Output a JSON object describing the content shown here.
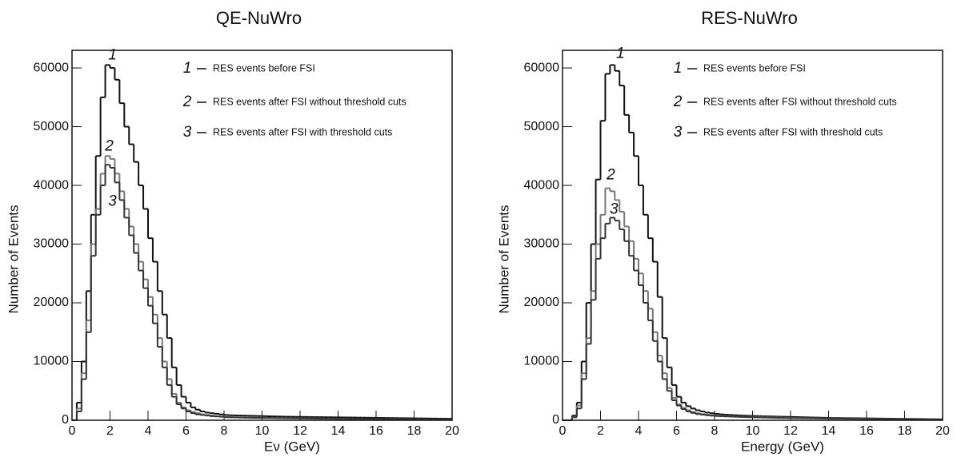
{
  "chart_data": [
    {
      "type": "histogram",
      "title": "QE-NuWro",
      "xlabel": "Eν (GeV)",
      "ylabel": "Number of Events",
      "xlim": [
        0,
        20
      ],
      "xticks": [
        0,
        2,
        4,
        6,
        8,
        10,
        12,
        14,
        16,
        18,
        20
      ],
      "ylim": [
        0,
        63000
      ],
      "yticks": [
        0,
        10000,
        20000,
        30000,
        40000,
        50000,
        60000
      ],
      "bins": [
        0,
        0.25,
        0.5,
        0.75,
        1,
        1.25,
        1.5,
        1.75,
        2,
        2.25,
        2.5,
        2.75,
        3,
        3.25,
        3.5,
        3.75,
        4,
        4.25,
        4.5,
        4.75,
        5,
        5.25,
        5.5,
        5.75,
        6,
        6.25,
        6.5,
        6.75,
        7,
        7.25,
        7.5,
        7.75,
        8,
        8.25,
        8.5,
        8.75,
        9,
        9.25,
        9.5,
        9.75,
        10,
        10.25,
        10.5,
        10.75,
        11,
        11.25,
        11.5,
        11.75,
        12,
        12.25,
        12.5,
        12.75,
        13,
        13.25,
        13.5,
        13.75,
        14,
        14.25,
        14.5,
        14.75,
        15,
        15.25,
        15.5,
        15.75,
        16,
        16.25,
        16.5,
        16.75,
        17,
        17.25,
        17.5,
        17.75,
        18,
        18.25,
        18.5,
        18.75,
        19,
        19.25,
        19.5,
        19.75,
        20
      ],
      "series": [
        {
          "label": "1",
          "name": "RES events before FSI",
          "color": "#111111",
          "values": [
            0,
            3000,
            10000,
            22000,
            35000,
            45000,
            55000,
            60500,
            60000,
            58000,
            54000,
            50000,
            47000,
            44000,
            40000,
            36000,
            31000,
            27000,
            22000,
            18000,
            14000,
            9000,
            6000,
            4000,
            3000,
            2200,
            1800,
            1500,
            1300,
            1200,
            1100,
            1000,
            900,
            850,
            820,
            800,
            780,
            760,
            740,
            720,
            700,
            680,
            660,
            640,
            620,
            600,
            590,
            580,
            570,
            560,
            550,
            540,
            530,
            520,
            510,
            500,
            490,
            480,
            470,
            460,
            450,
            440,
            430,
            420,
            410,
            400,
            390,
            380,
            370,
            360,
            350,
            340,
            330,
            320,
            310,
            300,
            290,
            280,
            270,
            260
          ]
        },
        {
          "label": "2",
          "name": "RES events after FSI without threshold cuts",
          "color": "#777777",
          "values": [
            0,
            2000,
            8000,
            17000,
            30000,
            36000,
            42000,
            45000,
            44500,
            42000,
            39000,
            36000,
            33000,
            30000,
            27000,
            24000,
            21000,
            18000,
            14000,
            10000,
            7000,
            4500,
            3000,
            2200,
            1700,
            1400,
            1200,
            1000,
            900,
            800,
            700,
            650,
            560,
            530,
            510,
            490,
            470,
            450,
            440,
            430,
            420,
            410,
            400,
            390,
            380,
            370,
            360,
            350,
            340,
            330,
            320,
            310,
            300,
            290,
            280,
            270,
            260,
            250,
            240,
            230,
            220,
            210,
            200,
            195,
            190,
            185,
            180,
            175,
            170,
            165,
            160,
            155,
            150,
            145,
            140,
            135,
            130,
            125,
            120,
            115
          ]
        },
        {
          "label": "3",
          "name": "RES events after FSI with threshold cuts",
          "color": "#333333",
          "values": [
            0,
            1500,
            7000,
            15000,
            28000,
            35000,
            40000,
            43500,
            43000,
            40500,
            37500,
            34500,
            31500,
            28500,
            25500,
            22500,
            19500,
            16500,
            12500,
            9000,
            6000,
            4000,
            2700,
            2000,
            1500,
            1200,
            1000,
            900,
            800,
            700,
            650,
            600,
            520,
            500,
            480,
            460,
            440,
            425,
            410,
            400,
            390,
            380,
            370,
            360,
            350,
            340,
            330,
            320,
            310,
            300,
            290,
            280,
            270,
            260,
            250,
            240,
            230,
            220,
            210,
            200,
            195,
            190,
            185,
            180,
            175,
            170,
            165,
            160,
            155,
            150,
            145,
            140,
            135,
            130,
            125,
            120,
            115,
            110,
            105,
            100
          ]
        }
      ]
    },
    {
      "type": "histogram",
      "title": "RES-NuWro",
      "xlabel": "Energy (GeV)",
      "ylabel": "Number of Events",
      "xlim": [
        0,
        20
      ],
      "xticks": [
        0,
        2,
        4,
        6,
        8,
        10,
        12,
        14,
        16,
        18,
        20
      ],
      "ylim": [
        0,
        63000
      ],
      "yticks": [
        0,
        10000,
        20000,
        30000,
        40000,
        50000,
        60000
      ],
      "bins": [
        0,
        0.25,
        0.5,
        0.75,
        1,
        1.25,
        1.5,
        1.75,
        2,
        2.25,
        2.5,
        2.75,
        3,
        3.25,
        3.5,
        3.75,
        4,
        4.25,
        4.5,
        4.75,
        5,
        5.25,
        5.5,
        5.75,
        6,
        6.25,
        6.5,
        6.75,
        7,
        7.25,
        7.5,
        7.75,
        8,
        8.25,
        8.5,
        8.75,
        9,
        9.25,
        9.5,
        9.75,
        10,
        10.25,
        10.5,
        10.75,
        11,
        11.25,
        11.5,
        11.75,
        12,
        12.25,
        12.5,
        12.75,
        13,
        13.25,
        13.5,
        13.75,
        14,
        14.25,
        14.5,
        14.75,
        15,
        15.25,
        15.5,
        15.75,
        16,
        16.25,
        16.5,
        16.75,
        17,
        17.25,
        17.5,
        17.75,
        18,
        18.25,
        18.5,
        18.75,
        19,
        19.25,
        19.5,
        19.75,
        20
      ],
      "series": [
        {
          "label": "1",
          "name": "RES events before FSI",
          "color": "#111111",
          "values": [
            0,
            0,
            800,
            3000,
            10000,
            20000,
            30000,
            41000,
            51000,
            59000,
            60500,
            59500,
            57000,
            52000,
            49000,
            45000,
            40000,
            35000,
            31000,
            27000,
            21000,
            14000,
            9000,
            6000,
            4000,
            3000,
            2400,
            2000,
            1700,
            1500,
            1300,
            1200,
            1100,
            1000,
            950,
            900,
            860,
            820,
            790,
            760,
            730,
            700,
            680,
            660,
            640,
            620,
            600,
            580,
            560,
            540,
            520,
            500,
            480,
            460,
            440,
            420,
            400,
            390,
            380,
            370,
            360,
            350,
            340,
            330,
            320,
            310,
            300,
            290,
            280,
            270,
            260,
            250,
            240,
            230,
            220,
            210,
            200,
            190,
            180,
            170
          ]
        },
        {
          "label": "2",
          "name": "RES events after FSI without threshold cuts",
          "color": "#777777",
          "values": [
            0,
            0,
            600,
            2500,
            8000,
            14000,
            22000,
            30000,
            35000,
            39500,
            39000,
            37500,
            35500,
            33000,
            30500,
            27500,
            25000,
            22000,
            19000,
            15000,
            11000,
            8000,
            5500,
            3800,
            2700,
            2100,
            1700,
            1400,
            1200,
            1050,
            950,
            850,
            800,
            760,
            720,
            680,
            650,
            620,
            600,
            580,
            560,
            540,
            520,
            500,
            480,
            460,
            440,
            420,
            400,
            390,
            380,
            370,
            360,
            350,
            340,
            330,
            320,
            310,
            300,
            290,
            280,
            270,
            260,
            250,
            240,
            230,
            220,
            210,
            200,
            190,
            180,
            170,
            160,
            150,
            140,
            130,
            120,
            110,
            100,
            90
          ]
        },
        {
          "label": "3",
          "name": "RES events after FSI with threshold cuts",
          "color": "#333333",
          "values": [
            0,
            0,
            500,
            2000,
            7000,
            13000,
            20500,
            27500,
            31000,
            33500,
            34500,
            34000,
            32500,
            30500,
            28000,
            25500,
            23000,
            20000,
            17000,
            13500,
            10000,
            7000,
            5000,
            3400,
            2500,
            1900,
            1500,
            1250,
            1050,
            950,
            850,
            780,
            720,
            680,
            650,
            620,
            590,
            560,
            540,
            520,
            500,
            480,
            460,
            440,
            420,
            400,
            390,
            380,
            370,
            360,
            350,
            340,
            330,
            320,
            310,
            300,
            290,
            280,
            270,
            260,
            250,
            240,
            230,
            220,
            210,
            200,
            190,
            180,
            170,
            160,
            150,
            140,
            130,
            120,
            110,
            100,
            90,
            80,
            70,
            60
          ]
        }
      ]
    }
  ]
}
